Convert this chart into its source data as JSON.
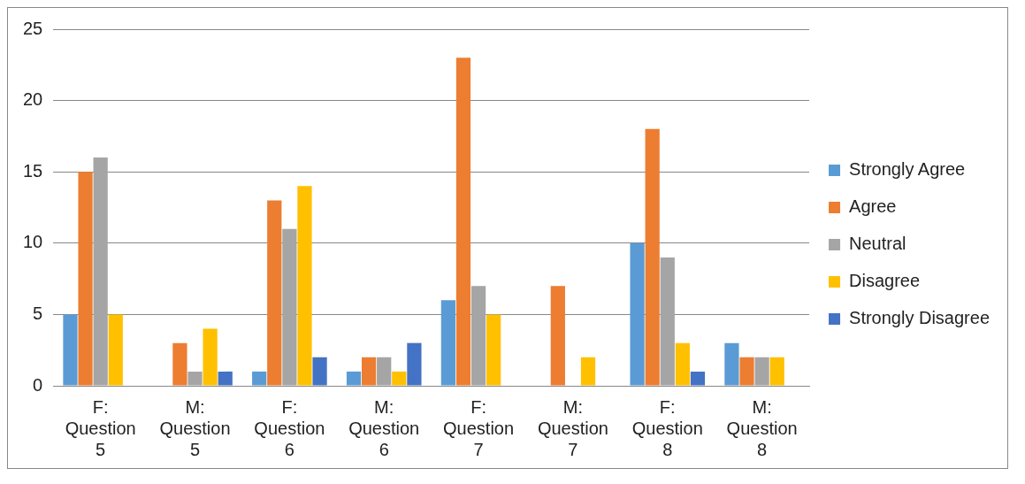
{
  "chart_data": {
    "type": "bar",
    "categories": [
      "F: Question 5",
      "M: Question 5",
      "F: Question 6",
      "M: Question 6",
      "F: Question 7",
      "M: Question 7",
      "F: Question 8",
      "M: Question 8"
    ],
    "series": [
      {
        "name": "Strongly Agree",
        "color": "#5b9bd5",
        "values": [
          5,
          0,
          1,
          1,
          6,
          0,
          10,
          3
        ]
      },
      {
        "name": "Agree",
        "color": "#ed7d31",
        "values": [
          15,
          3,
          13,
          2,
          23,
          7,
          18,
          2
        ]
      },
      {
        "name": "Neutral",
        "color": "#a5a5a5",
        "values": [
          16,
          1,
          11,
          2,
          7,
          0,
          9,
          2
        ]
      },
      {
        "name": "Disagree",
        "color": "#ffc000",
        "values": [
          5,
          4,
          14,
          1,
          5,
          2,
          3,
          2
        ]
      },
      {
        "name": "Strongly Disagree",
        "color": "#4472c4",
        "values": [
          0,
          1,
          2,
          3,
          0,
          0,
          1,
          0
        ]
      }
    ],
    "ylim": [
      0,
      25
    ],
    "yticks": [
      0,
      5,
      10,
      15,
      20,
      25
    ],
    "grid": "y",
    "legend": "right"
  }
}
